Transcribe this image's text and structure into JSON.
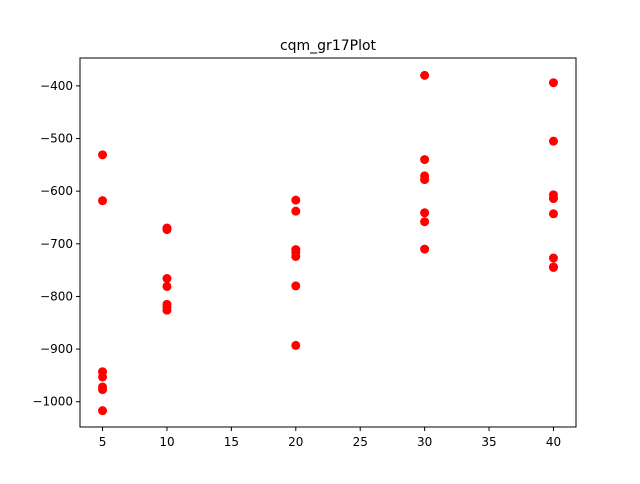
{
  "chart_data": {
    "type": "scatter",
    "title": "cqm_gr17Plot",
    "xlabel": "",
    "ylabel": "",
    "xlim": [
      3.25,
      41.75
    ],
    "ylim": [
      -1048,
      -347
    ],
    "grid": false,
    "legend": "none",
    "marker_color": "#ff0000",
    "x_ticks": [
      5,
      10,
      15,
      20,
      25,
      30,
      35,
      40
    ],
    "y_ticks": [
      -400,
      -500,
      -600,
      -700,
      -800,
      -900,
      -1000
    ],
    "x_tick_labels": [
      "5",
      "10",
      "15",
      "20",
      "25",
      "30",
      "35",
      "40"
    ],
    "y_tick_labels": [
      "−400",
      "−500",
      "−600",
      "−700",
      "−800",
      "−900",
      "−1000"
    ],
    "series": [
      {
        "x": [
          5,
          5,
          5,
          5,
          5,
          5,
          5,
          10,
          10,
          10,
          10,
          10,
          10,
          10,
          20,
          20,
          20,
          20,
          20,
          20,
          20,
          30,
          30,
          30,
          30,
          30,
          30,
          30,
          40,
          40,
          40,
          40,
          40,
          40,
          40,
          40
        ],
        "y": [
          -531,
          -618,
          -943,
          -953,
          -972,
          -977,
          -1017,
          -670,
          -673,
          -766,
          -781,
          -815,
          -820,
          -826,
          -617,
          -638,
          -711,
          -716,
          -724,
          -780,
          -893,
          -380,
          -540,
          -571,
          -578,
          -641,
          -658,
          -710,
          -394,
          -505,
          -607,
          -614,
          -643,
          -727,
          -744,
          -745
        ]
      }
    ]
  }
}
